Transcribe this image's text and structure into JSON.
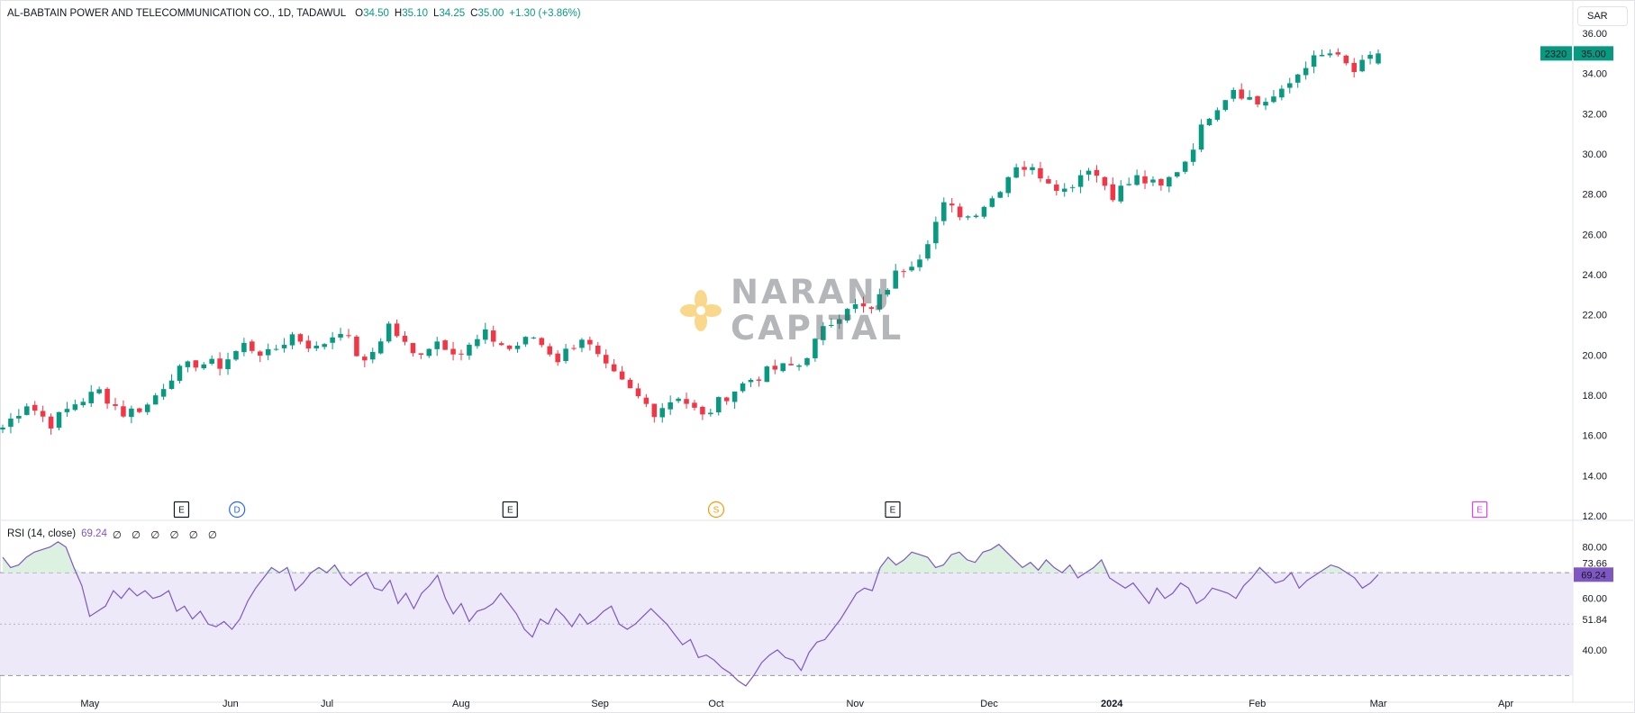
{
  "header": {
    "symbol": "AL-BABTAIN POWER AND TELECOMMUNICATION CO., 1D, TADAWUL",
    "open_label": "O",
    "open_value": "34.50",
    "high_label": "H",
    "high_value": "35.10",
    "low_label": "L",
    "low_value": "34.25",
    "close_label": "C",
    "close_value": "35.00",
    "change": "+1.30 (+3.86%)"
  },
  "currency": "SAR",
  "rsi_legend": {
    "label": "RSI (14, close)",
    "value": "69.24",
    "placeholders": "∅ ∅ ∅ ∅ ∅ ∅"
  },
  "watermark": {
    "line1": "NARANJ",
    "line2": "CAPITAL"
  },
  "colors": {
    "up": "#089981",
    "down": "#f23645",
    "rsi_line": "#7e57c2",
    "rsi_band": "#ede9f8",
    "price_tag": "#089981",
    "rsi_tag": "#7e57c2",
    "grid_dash": "#9598a1",
    "text": "#131722"
  },
  "chart_data": [
    {
      "type": "candlestick",
      "title": "AL-BABTAIN POWER AND TELECOMMUNICATION CO., 1D, TADAWUL",
      "ylim": [
        12,
        36
      ],
      "y_ticks": [
        "36.00",
        "34.00",
        "32.00",
        "30.00",
        "28.00",
        "26.00",
        "24.00",
        "22.00",
        "20.00",
        "18.00",
        "16.00",
        "14.00",
        "12.00"
      ],
      "x_ticks": [
        {
          "label": "May",
          "t": 0.055
        },
        {
          "label": "Jun",
          "t": 0.141
        },
        {
          "label": "Jul",
          "t": 0.2
        },
        {
          "label": "Aug",
          "t": 0.282
        },
        {
          "label": "Sep",
          "t": 0.367
        },
        {
          "label": "Oct",
          "t": 0.438
        },
        {
          "label": "Nov",
          "t": 0.523
        },
        {
          "label": "Dec",
          "t": 0.605
        },
        {
          "label": "2024",
          "t": 0.68,
          "bold": true
        },
        {
          "label": "Feb",
          "t": 0.769
        },
        {
          "label": "Mar",
          "t": 0.843
        },
        {
          "label": "Apr",
          "t": 0.921
        }
      ],
      "last_close": "35.00",
      "last_volume_tag": "2320",
      "key_prices": [
        16.4,
        17.6,
        16.6,
        17.6,
        18.2,
        17.1,
        17.5,
        19.0,
        19.6,
        19.5,
        20.5,
        20.0,
        21.0,
        20.3,
        21.3,
        19.5,
        21.5,
        20.0,
        20.7,
        20.1,
        21.0,
        20.3,
        20.9,
        19.8,
        20.9,
        19.3,
        18.2,
        17.2,
        18.0,
        16.9,
        18.0,
        18.8,
        19.3,
        19.5,
        21.2,
        22.5,
        22.2,
        24.0,
        25.0,
        27.4,
        26.9,
        27.8,
        29.5,
        29.0,
        28.2,
        29.4,
        28.0,
        28.8,
        28.3,
        29.7,
        32.0,
        33.3,
        32.5,
        33.0,
        34.5,
        35.0,
        34.1,
        35.0
      ],
      "events": [
        {
          "letter": "E",
          "t": 0.111,
          "color": "#131722"
        },
        {
          "letter": "D",
          "t": 0.145,
          "color": "#2962ff",
          "round": true
        },
        {
          "letter": "E",
          "t": 0.312,
          "color": "#131722"
        },
        {
          "letter": "S",
          "t": 0.438,
          "color": "#ff9800",
          "round": true
        },
        {
          "letter": "E",
          "t": 0.546,
          "color": "#131722"
        },
        {
          "letter": "E",
          "t": 0.905,
          "color": "#e040fb"
        }
      ]
    },
    {
      "type": "line",
      "title": "RSI (14, close)",
      "ylim": [
        20,
        90
      ],
      "y_ticks": [
        "80.00",
        "73.66",
        "60.00",
        "51.84",
        "40.00"
      ],
      "bands": {
        "upper": 70,
        "middle": 50,
        "lower": 30
      },
      "last_value": "69.24",
      "values": [
        76,
        72,
        73,
        76,
        78,
        79,
        80,
        82,
        80,
        72,
        65,
        53,
        55,
        57,
        63,
        60,
        64,
        61,
        63,
        60,
        61,
        63,
        55,
        57,
        52,
        55,
        50,
        49,
        51,
        48,
        52,
        59,
        64,
        68,
        72,
        70,
        72,
        63,
        66,
        70,
        72,
        70,
        73,
        68,
        65,
        68,
        70,
        64,
        63,
        67,
        58,
        62,
        56,
        62,
        65,
        69,
        60,
        54,
        58,
        51,
        55,
        56,
        58,
        62,
        58,
        54,
        48,
        45,
        52,
        50,
        56,
        53,
        49,
        54,
        50,
        52,
        55,
        57,
        50,
        48,
        50,
        53,
        56,
        53,
        50,
        46,
        42,
        44,
        37,
        38,
        36,
        33,
        31,
        28,
        26,
        30,
        35,
        38,
        40,
        37,
        36,
        32,
        39,
        43,
        44,
        48,
        52,
        57,
        62,
        64,
        63,
        72,
        76,
        73,
        75,
        78,
        77,
        76,
        72,
        73,
        77,
        78,
        75,
        74,
        78,
        79,
        81,
        78,
        75,
        72,
        74,
        71,
        75,
        72,
        70,
        73,
        68,
        70,
        72,
        75,
        68,
        66,
        64,
        66,
        62,
        58,
        64,
        60,
        62,
        66,
        64,
        58,
        60,
        64,
        63,
        62,
        60,
        65,
        68,
        72,
        69,
        66,
        67,
        70,
        64,
        67,
        69,
        71,
        73,
        72,
        70,
        68,
        64,
        66,
        69.24
      ]
    }
  ]
}
